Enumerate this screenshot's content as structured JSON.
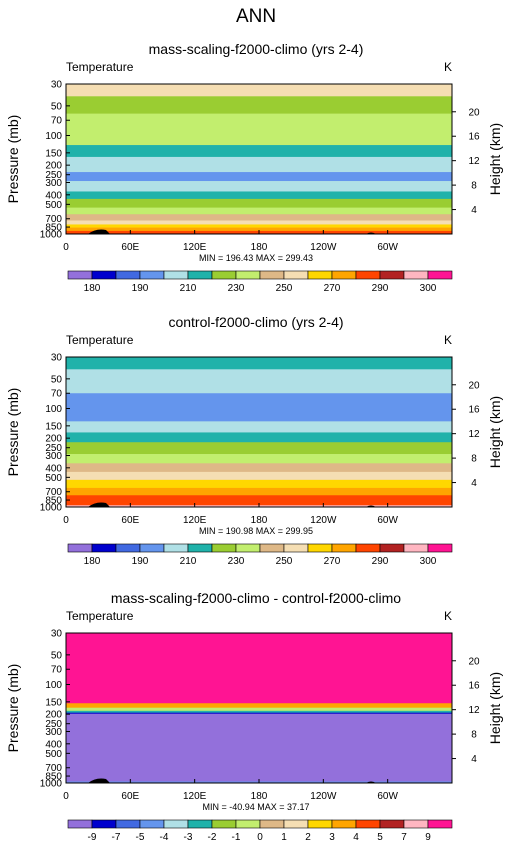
{
  "figure": {
    "title": "ANN"
  },
  "colorbar_colors": [
    "#9370db",
    "#0000cd",
    "#4169e1",
    "#6495ed",
    "#b0e0e6",
    "#20b2aa",
    "#9acd32",
    "#c2ee6e",
    "#deb887",
    "#f5deb3",
    "#ffd700",
    "#ffa500",
    "#ff4500",
    "#b22222",
    "#ffb6c1",
    "#ff1493"
  ],
  "chart_data": [
    {
      "type": "heatmap",
      "title": "mass-scaling-f2000-climo (yrs 2-4)",
      "label_left": "Temperature",
      "units": "K",
      "ylabel": "Pressure (mb)",
      "ylabel_right": "Height (km)",
      "x_ticks": [
        "0",
        "60E",
        "120E",
        "180",
        "120W",
        "60W"
      ],
      "y_ticks": [
        "30",
        "50",
        "70",
        "100",
        "150",
        "200",
        "250",
        "300",
        "400",
        "500",
        "700",
        "850",
        "1000"
      ],
      "height_ticks": [
        "20",
        "16",
        "12",
        "8",
        "4"
      ],
      "stats": "MIN = 196.43  MAX = 299.43",
      "colorbar_labels": [
        "180",
        "190",
        "210",
        "230",
        "250",
        "270",
        "290",
        "300"
      ],
      "bands": [
        {
          "p_top": 30,
          "p_bot": 40,
          "color": "#f5deb3"
        },
        {
          "p_top": 40,
          "p_bot": 60,
          "color": "#9acd32"
        },
        {
          "p_top": 60,
          "p_bot": 125,
          "color": "#c2ee6e"
        },
        {
          "p_top": 125,
          "p_bot": 165,
          "color": "#20b2aa"
        },
        {
          "p_top": 165,
          "p_bot": 235,
          "color": "#b0e0e6"
        },
        {
          "p_top": 235,
          "p_bot": 290,
          "color": "#6495ed"
        },
        {
          "p_top": 290,
          "p_bot": 370,
          "color": "#b0e0e6"
        },
        {
          "p_top": 370,
          "p_bot": 440,
          "color": "#20b2aa"
        },
        {
          "p_top": 440,
          "p_bot": 540,
          "color": "#9acd32"
        },
        {
          "p_top": 540,
          "p_bot": 630,
          "color": "#c2ee6e"
        },
        {
          "p_top": 630,
          "p_bot": 730,
          "color": "#deb887"
        },
        {
          "p_top": 730,
          "p_bot": 800,
          "color": "#f5deb3"
        },
        {
          "p_top": 800,
          "p_bot": 860,
          "color": "#ffd700"
        },
        {
          "p_top": 860,
          "p_bot": 930,
          "color": "#ffa500"
        },
        {
          "p_top": 930,
          "p_bot": 985,
          "color": "#ff4500"
        },
        {
          "p_top": 985,
          "p_bot": 1000,
          "color": "#b22222"
        }
      ]
    },
    {
      "type": "heatmap",
      "title": "control-f2000-climo (yrs 2-4)",
      "label_left": "Temperature",
      "units": "K",
      "ylabel": "Pressure (mb)",
      "ylabel_right": "Height (km)",
      "x_ticks": [
        "0",
        "60E",
        "120E",
        "180",
        "120W",
        "60W"
      ],
      "y_ticks": [
        "30",
        "50",
        "70",
        "100",
        "150",
        "200",
        "250",
        "300",
        "400",
        "500",
        "700",
        "850",
        "1000"
      ],
      "height_ticks": [
        "20",
        "16",
        "12",
        "8",
        "4"
      ],
      "stats": "MIN = 190.98  MAX = 299.95",
      "colorbar_labels": [
        "180",
        "190",
        "210",
        "230",
        "250",
        "270",
        "290",
        "300"
      ],
      "bands": [
        {
          "p_top": 30,
          "p_bot": 40,
          "color": "#20b2aa"
        },
        {
          "p_top": 40,
          "p_bot": 70,
          "color": "#b0e0e6"
        },
        {
          "p_top": 70,
          "p_bot": 135,
          "color": "#6495ed"
        },
        {
          "p_top": 135,
          "p_bot": 175,
          "color": "#b0e0e6"
        },
        {
          "p_top": 175,
          "p_bot": 220,
          "color": "#20b2aa"
        },
        {
          "p_top": 220,
          "p_bot": 290,
          "color": "#9acd32"
        },
        {
          "p_top": 290,
          "p_bot": 360,
          "color": "#c2ee6e"
        },
        {
          "p_top": 360,
          "p_bot": 440,
          "color": "#deb887"
        },
        {
          "p_top": 440,
          "p_bot": 530,
          "color": "#f5deb3"
        },
        {
          "p_top": 530,
          "p_bot": 640,
          "color": "#ffd700"
        },
        {
          "p_top": 640,
          "p_bot": 760,
          "color": "#ffa500"
        },
        {
          "p_top": 760,
          "p_bot": 960,
          "color": "#ff4500"
        },
        {
          "p_top": 960,
          "p_bot": 1000,
          "color": "#ffb6c1"
        }
      ]
    },
    {
      "type": "heatmap",
      "title": "mass-scaling-f2000-climo - control-f2000-climo",
      "label_left": "Temperature",
      "units": "K",
      "ylabel": "Pressure (mb)",
      "ylabel_right": "Height (km)",
      "x_ticks": [
        "0",
        "60E",
        "120E",
        "180",
        "120W",
        "60W"
      ],
      "y_ticks": [
        "30",
        "50",
        "70",
        "100",
        "150",
        "200",
        "250",
        "300",
        "400",
        "500",
        "700",
        "850",
        "1000"
      ],
      "height_ticks": [
        "20",
        "16",
        "12",
        "8",
        "4"
      ],
      "stats": "MIN = -40.94  MAX = 37.17",
      "colorbar_labels": [
        "-9",
        "-7",
        "-5",
        "-4",
        "-3",
        "-2",
        "-1",
        "0",
        "1",
        "2",
        "3",
        "4",
        "5",
        "7",
        "9"
      ],
      "bands": [
        {
          "p_top": 30,
          "p_bot": 155,
          "color": "#ff1493"
        },
        {
          "p_top": 155,
          "p_bot": 172,
          "color": "#ffa500"
        },
        {
          "p_top": 172,
          "p_bot": 185,
          "color": "#c2ee6e"
        },
        {
          "p_top": 185,
          "p_bot": 193,
          "color": "#20b2aa"
        },
        {
          "p_top": 193,
          "p_bot": 198,
          "color": "#0000cd"
        },
        {
          "p_top": 198,
          "p_bot": 965,
          "color": "#9370db"
        },
        {
          "p_top": 965,
          "p_bot": 985,
          "color": "#6495ed"
        },
        {
          "p_top": 985,
          "p_bot": 1000,
          "color": "#9370db"
        }
      ]
    }
  ]
}
